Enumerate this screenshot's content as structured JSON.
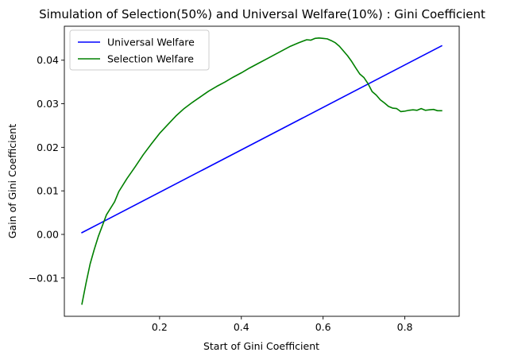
{
  "chart_data": {
    "type": "line",
    "title": "Simulation of Selection(50%) and Universal Welfare(10%) : Gini Coefficient",
    "xlabel": "Start of Gini Coefficient",
    "ylabel": "Gain of Gini Coefficient",
    "xlim": [
      -0.033,
      0.933
    ],
    "ylim": [
      -0.0188,
      0.0478
    ],
    "xticks": [
      0.2,
      0.4,
      0.6,
      0.8
    ],
    "xtick_labels": [
      "0.2",
      "0.4",
      "0.6",
      "0.8"
    ],
    "yticks": [
      -0.01,
      0.0,
      0.01,
      0.02,
      0.03,
      0.04
    ],
    "ytick_labels": [
      "−0.01",
      "0.00",
      "0.01",
      "0.02",
      "0.03",
      "0.04"
    ],
    "grid": false,
    "legend_position": "upper-left",
    "series": [
      {
        "name": "Universal Welfare",
        "color": "#0000ff",
        "x": [
          0.01,
          0.89
        ],
        "y": [
          0.0004,
          0.0433
        ]
      },
      {
        "name": "Selection Welfare",
        "color": "#008000",
        "x": [
          0.01,
          0.02,
          0.03,
          0.04,
          0.05,
          0.06,
          0.07,
          0.08,
          0.09,
          0.1,
          0.12,
          0.14,
          0.16,
          0.18,
          0.2,
          0.22,
          0.24,
          0.26,
          0.28,
          0.3,
          0.32,
          0.34,
          0.36,
          0.38,
          0.4,
          0.42,
          0.44,
          0.46,
          0.48,
          0.5,
          0.52,
          0.54,
          0.56,
          0.57,
          0.58,
          0.59,
          0.6,
          0.61,
          0.62,
          0.63,
          0.64,
          0.65,
          0.66,
          0.67,
          0.68,
          0.69,
          0.7,
          0.71,
          0.72,
          0.73,
          0.74,
          0.75,
          0.76,
          0.77,
          0.78,
          0.79,
          0.8,
          0.81,
          0.82,
          0.83,
          0.84,
          0.85,
          0.86,
          0.87,
          0.88,
          0.89
        ],
        "y": [
          -0.016,
          -0.0112,
          -0.0068,
          -0.0035,
          -0.0005,
          0.002,
          0.0045,
          0.006,
          0.0075,
          0.0098,
          0.0128,
          0.0155,
          0.0183,
          0.0208,
          0.0232,
          0.0252,
          0.0272,
          0.0289,
          0.0303,
          0.0316,
          0.0329,
          0.034,
          0.035,
          0.0361,
          0.0371,
          0.0382,
          0.0392,
          0.0402,
          0.0412,
          0.0422,
          0.0432,
          0.044,
          0.0447,
          0.0446,
          0.045,
          0.0451,
          0.045,
          0.0449,
          0.0445,
          0.044,
          0.0432,
          0.0421,
          0.041,
          0.0397,
          0.0382,
          0.0368,
          0.036,
          0.0346,
          0.0328,
          0.032,
          0.0309,
          0.0302,
          0.0294,
          0.029,
          0.0289,
          0.0282,
          0.0283,
          0.0285,
          0.0286,
          0.0285,
          0.0289,
          0.0285,
          0.0286,
          0.0287,
          0.0284,
          0.0284
        ]
      }
    ]
  }
}
